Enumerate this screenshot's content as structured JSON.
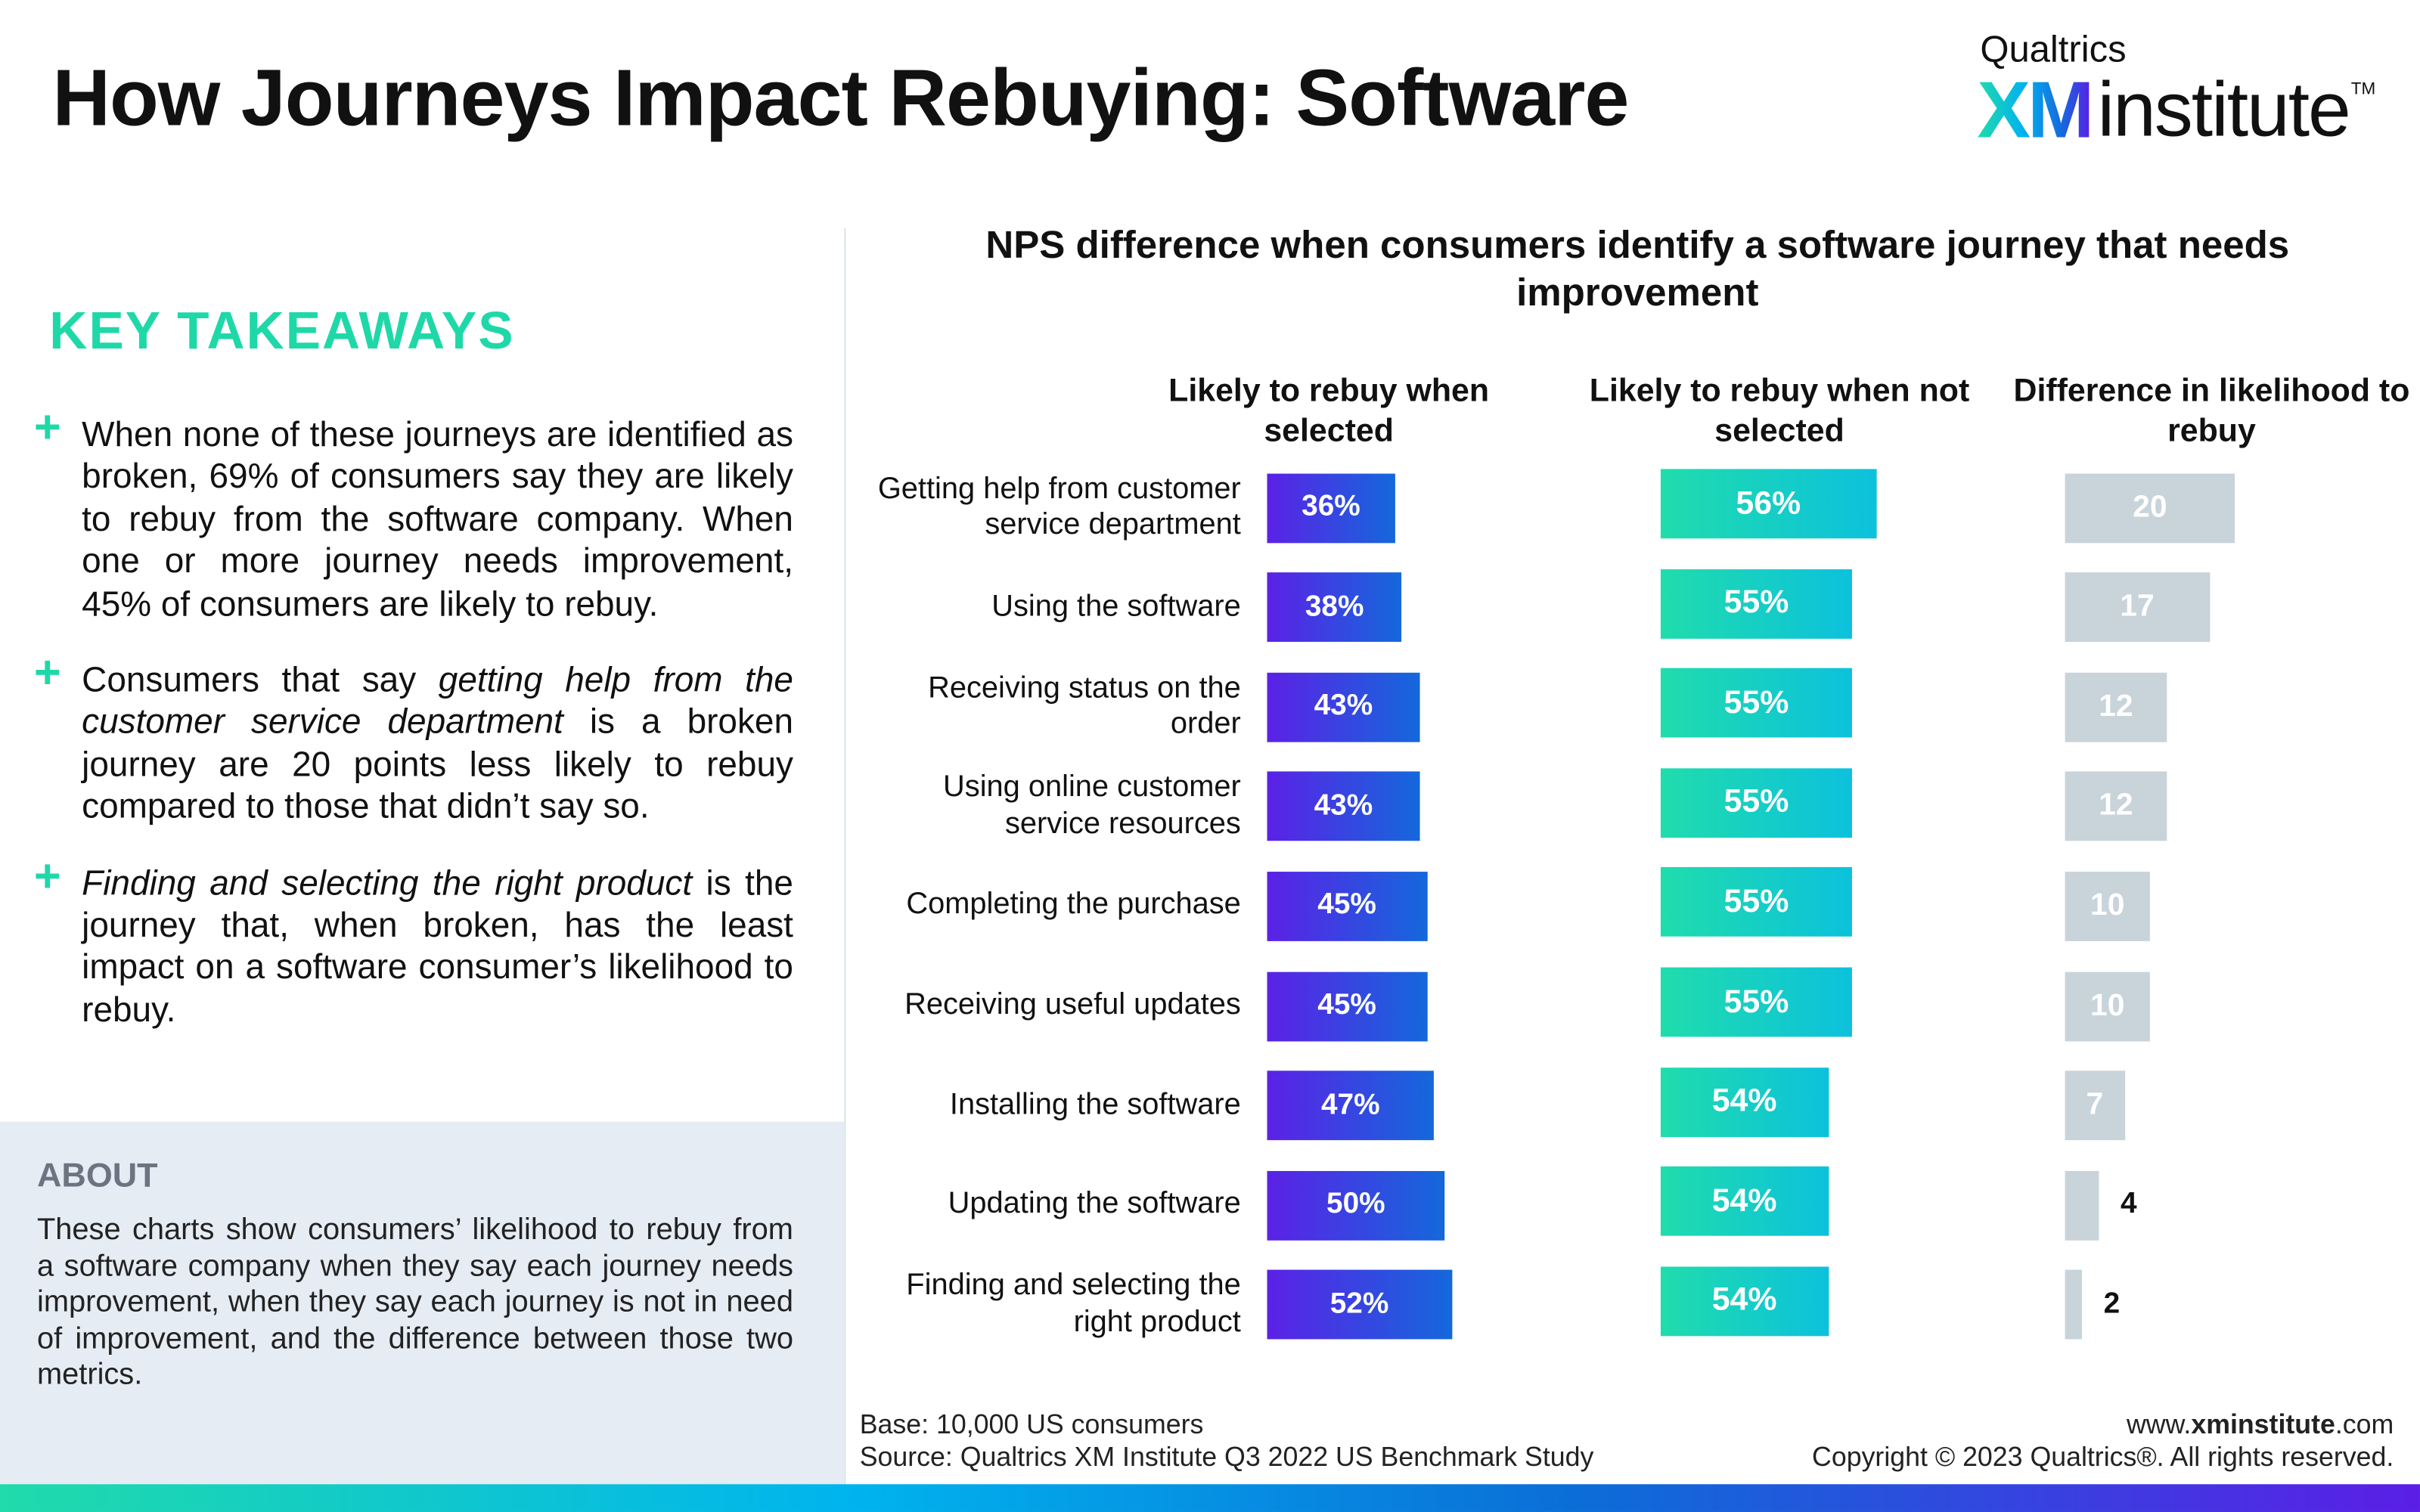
{
  "title": "How Journeys Impact Rebuying: Software",
  "logo": {
    "top": "Qualtrics",
    "xm": "XM",
    "institute": "institute",
    "tm": "TM"
  },
  "takeaways": {
    "heading": "KEY TAKEAWAYS",
    "items": [
      "When none of these journeys are identified as broken, 69% of consumers say they are likely to rebuy from the software company. When one or more journey needs improvement, 45% of consumers are likely to rebuy.",
      "Consumers that say <i>getting help from the customer service department</i> is a broken journey are 20 points less likely to rebuy compared to those that didn’t say so.",
      "<i>Finding and selecting the right product</i> is the journey that, when broken, has the least impact on a software consumer’s likelihood to rebuy."
    ]
  },
  "about": {
    "heading": "ABOUT",
    "text": "These charts show consumers’ likelihood to rebuy from a software company when they say each journey needs improvement, when they say each journey is not in need of improvement, and the difference between those two metrics."
  },
  "chart_data": {
    "type": "bar",
    "title": "NPS difference when consumers identify a software journey that needs improvement",
    "categories": [
      "Getting help from customer service department",
      "Using the software",
      "Receiving status on the order",
      "Using online customer service resources",
      "Completing the purchase",
      "Receiving useful updates",
      "Installing the software",
      "Updating the software",
      "Finding and selecting the right product"
    ],
    "series": [
      {
        "name": "Likely to rebuy when selected",
        "values": [
          36,
          38,
          43,
          43,
          45,
          45,
          47,
          50,
          52
        ],
        "labels": [
          "36%",
          "38%",
          "43%",
          "43%",
          "45%",
          "45%",
          "47%",
          "50%",
          "52%"
        ]
      },
      {
        "name": "Likely to rebuy when not selected",
        "values": [
          56,
          55,
          55,
          55,
          55,
          55,
          54,
          54,
          54
        ],
        "labels": [
          "56%",
          "55%",
          "55%",
          "55%",
          "55%",
          "55%",
          "54%",
          "54%",
          "54%"
        ]
      },
      {
        "name": "Difference in likelihood to rebuy",
        "values": [
          20,
          17,
          12,
          12,
          10,
          10,
          7,
          4,
          2
        ],
        "labels": [
          "20",
          "17",
          "12",
          "12",
          "10",
          "10",
          "7",
          "4",
          "2"
        ]
      }
    ],
    "colors": {
      "selected": "#5b21e6",
      "not_selected": "#20dcac",
      "difference": "#c8d3da"
    }
  },
  "footer": {
    "base": "Base: 10,000 US consumers",
    "source": "Source: Qualtrics XM Institute Q3 2022 US Benchmark Study",
    "url_pre": "www.",
    "url_bold": "xminstitute",
    "url_post": ".com",
    "copyright": "Copyright © 2023 Qualtrics®. All rights reserved."
  }
}
